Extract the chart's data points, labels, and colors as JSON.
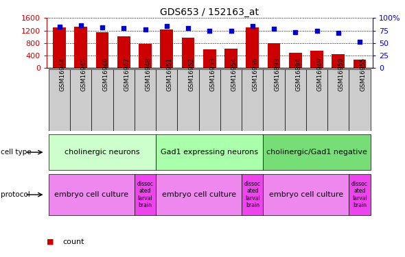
{
  "title": "GDS653 / 152163_at",
  "samples": [
    "GSM16944",
    "GSM16945",
    "GSM16946",
    "GSM16947",
    "GSM16948",
    "GSM16951",
    "GSM16952",
    "GSM16953",
    "GSM16954",
    "GSM16956",
    "GSM16893",
    "GSM16894",
    "GSM16949",
    "GSM16950",
    "GSM16955"
  ],
  "counts": [
    1300,
    1330,
    1150,
    1020,
    780,
    1230,
    960,
    590,
    620,
    1300,
    800,
    490,
    560,
    440,
    270
  ],
  "percentiles": [
    83,
    85,
    81,
    80,
    77,
    84,
    80,
    74,
    75,
    84,
    78,
    72,
    75,
    70,
    53
  ],
  "bar_color": "#cc0000",
  "dot_color": "#0000cc",
  "ylim_left": [
    0,
    1600
  ],
  "ylim_right": [
    0,
    100
  ],
  "yticks_left": [
    0,
    400,
    800,
    1200,
    1600
  ],
  "yticks_right": [
    0,
    25,
    50,
    75,
    100
  ],
  "cell_type_groups": [
    {
      "label": "cholinergic neurons",
      "start": 0,
      "end": 5,
      "color": "#ccffcc"
    },
    {
      "label": "Gad1 expressing neurons",
      "start": 5,
      "end": 10,
      "color": "#aaffaa"
    },
    {
      "label": "cholinergic/Gad1 negative",
      "start": 10,
      "end": 15,
      "color": "#77dd77"
    }
  ],
  "protocol_groups": [
    {
      "label": "embryo cell culture",
      "start": 0,
      "end": 4,
      "color": "#ee88ee"
    },
    {
      "label": "dissoc\nated\nlarval\nbrain",
      "start": 4,
      "end": 5,
      "color": "#ee44ee"
    },
    {
      "label": "embryo cell culture",
      "start": 5,
      "end": 9,
      "color": "#ee88ee"
    },
    {
      "label": "dissoc\nated\nlarval\nbrain",
      "start": 9,
      "end": 10,
      "color": "#ee44ee"
    },
    {
      "label": "embryo cell culture",
      "start": 10,
      "end": 14,
      "color": "#ee88ee"
    },
    {
      "label": "dissoc\nated\nlarval\nbrain",
      "start": 14,
      "end": 15,
      "color": "#ee44ee"
    }
  ],
  "legend_count_color": "#cc0000",
  "legend_pct_color": "#0000cc",
  "xlabel_bg": "#cccccc"
}
